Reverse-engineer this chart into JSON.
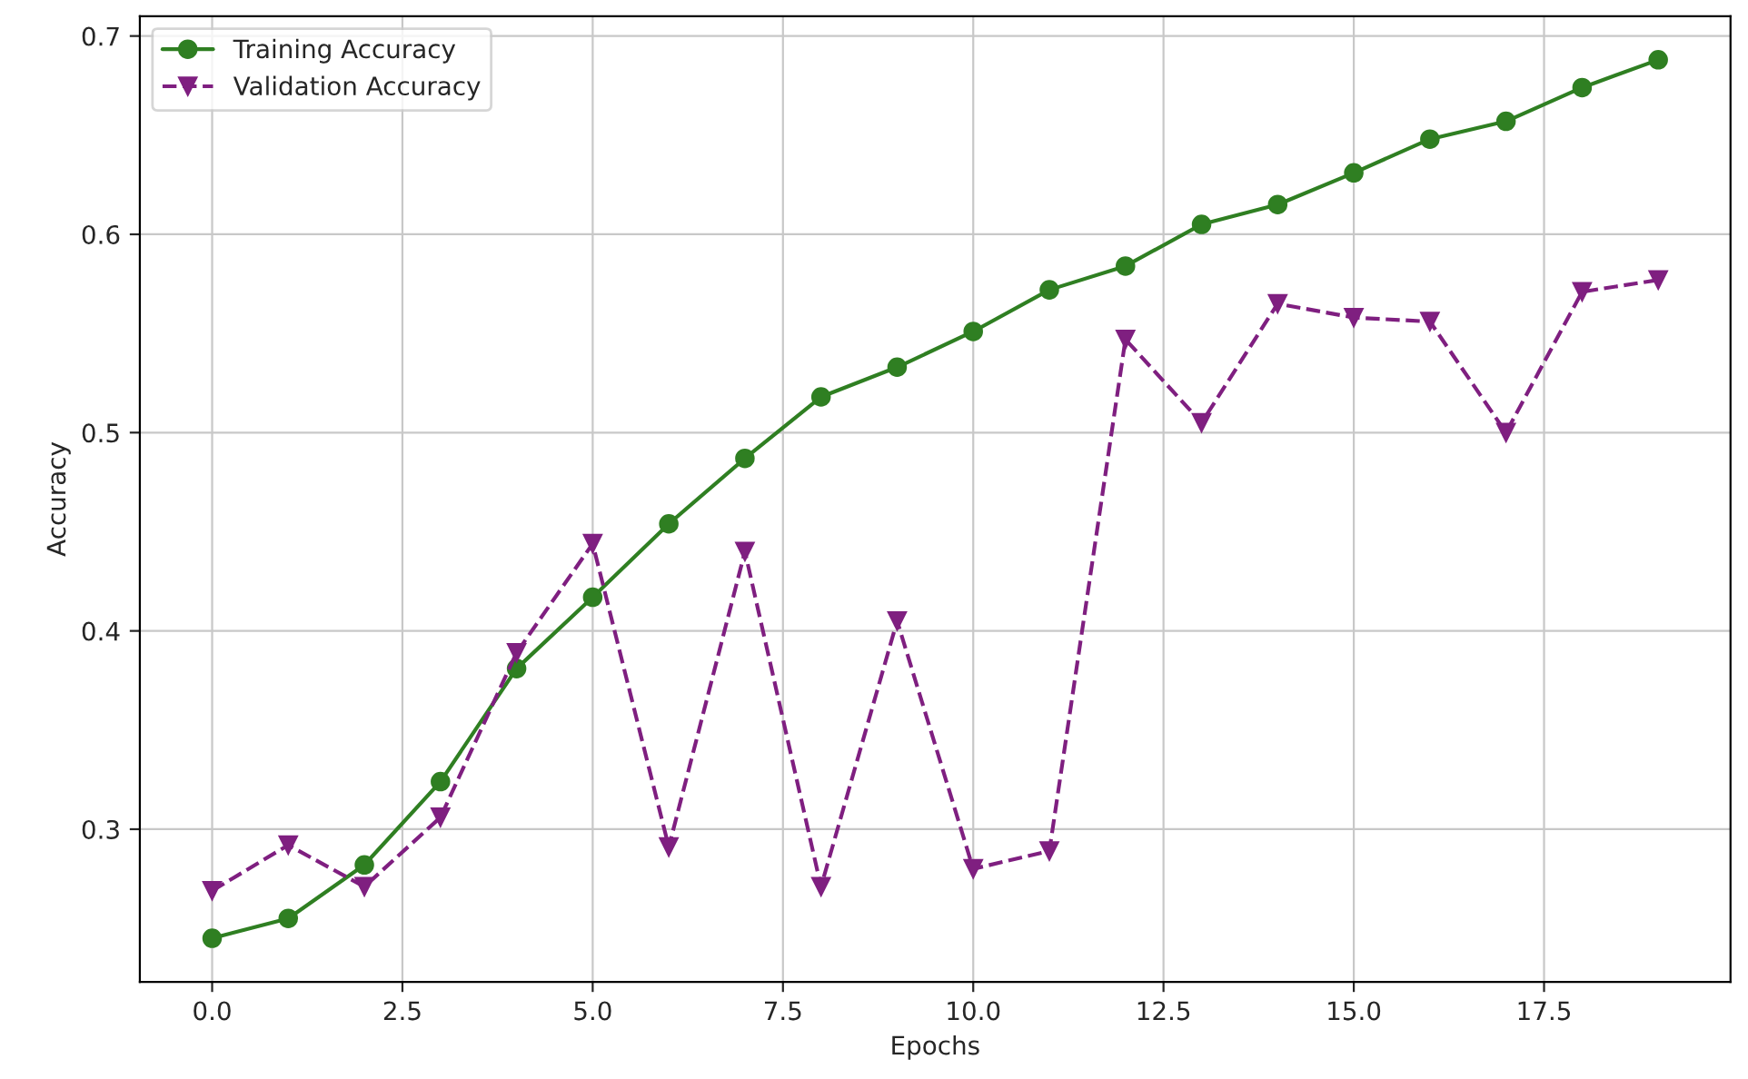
{
  "chart_data": {
    "type": "line",
    "xlabel": "Epochs",
    "ylabel": "Accuracy",
    "x": [
      0,
      1,
      2,
      3,
      4,
      5,
      6,
      7,
      8,
      9,
      10,
      11,
      12,
      13,
      14,
      15,
      16,
      17,
      18,
      19
    ],
    "series": [
      {
        "name": "Training Accuracy",
        "color": "#2f7f22",
        "marker": "circle",
        "line_style": "solid",
        "values": [
          0.245,
          0.255,
          0.282,
          0.324,
          0.381,
          0.417,
          0.454,
          0.487,
          0.518,
          0.533,
          0.551,
          0.572,
          0.584,
          0.605,
          0.615,
          0.631,
          0.648,
          0.657,
          0.674,
          0.688
        ]
      },
      {
        "name": "Validation Accuracy",
        "color": "#7f1f80",
        "marker": "triangle",
        "line_style": "dashed",
        "values": [
          0.269,
          0.292,
          0.271,
          0.306,
          0.389,
          0.444,
          0.291,
          0.44,
          0.271,
          0.405,
          0.28,
          0.289,
          0.547,
          0.505,
          0.565,
          0.558,
          0.556,
          0.5,
          0.571,
          0.577
        ]
      }
    ],
    "xlim": [
      -0.95,
      19.95
    ],
    "xticks": [
      {
        "value": 0,
        "label": "0.0"
      },
      {
        "value": 2.5,
        "label": "2.5"
      },
      {
        "value": 5,
        "label": "5.0"
      },
      {
        "value": 7.5,
        "label": "7.5"
      },
      {
        "value": 10,
        "label": "10.0"
      },
      {
        "value": 12.5,
        "label": "12.5"
      },
      {
        "value": 15,
        "label": "15.0"
      },
      {
        "value": 17.5,
        "label": "17.5"
      }
    ],
    "ylim": [
      0.223,
      0.71
    ],
    "yticks": [
      0.3,
      0.4,
      0.5,
      0.6,
      0.7
    ],
    "grid": true,
    "legend": "top left"
  }
}
